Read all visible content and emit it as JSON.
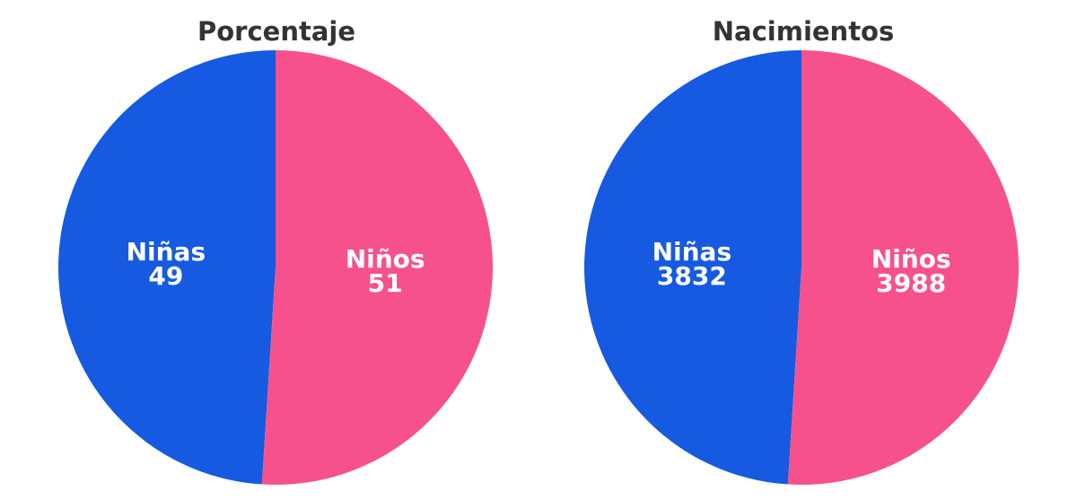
{
  "chart_data": [
    {
      "type": "pie",
      "title": "Porcentaje",
      "categories": [
        "Niñas",
        "Niños"
      ],
      "values": [
        49,
        51
      ],
      "value_labels": [
        "49",
        "51"
      ],
      "colors": [
        "#155ae0",
        "#f7518d"
      ],
      "start_angle_deg": 0,
      "direction": "counterclockwise",
      "legend": "none"
    },
    {
      "type": "pie",
      "title": "Nacimientos",
      "categories": [
        "Niñas",
        "Niños"
      ],
      "values": [
        3832,
        3988
      ],
      "value_labels": [
        "3832",
        "3988"
      ],
      "colors": [
        "#155ae0",
        "#f7518d"
      ],
      "start_angle_deg": 0,
      "direction": "counterclockwise",
      "legend": "none"
    }
  ]
}
